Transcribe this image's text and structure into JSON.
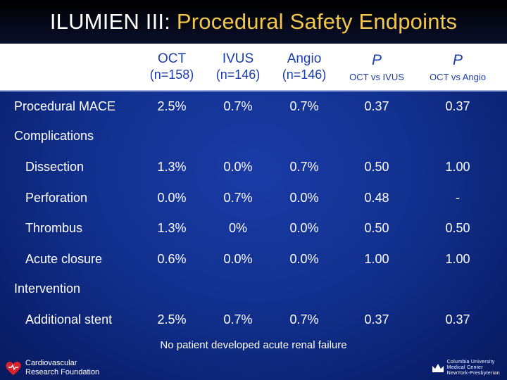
{
  "slide": {
    "title_prefix": "ILUMIEN III: ",
    "title_accent": "Procedural Safety Endpoints",
    "accent_color": "#f2c74a",
    "background_color": "#12318f"
  },
  "table": {
    "headers": [
      {
        "line1": "OCT",
        "line2": "(n=158)"
      },
      {
        "line1": "IVUS",
        "line2": "(n=146)"
      },
      {
        "line1": "Angio",
        "line2": "(n=146)"
      },
      {
        "p": "P",
        "sub": "OCT vs IVUS"
      },
      {
        "p": "P",
        "sub": "OCT vs Angio"
      }
    ],
    "row_mace": {
      "label": "Procedural MACE",
      "values": [
        "2.5%",
        "0.7%",
        "0.7%",
        "0.37",
        "0.37"
      ]
    },
    "section_complications": "Complications",
    "complications": [
      {
        "label": "Dissection",
        "values": [
          "1.3%",
          "0.0%",
          "0.7%",
          "0.50",
          "1.00"
        ]
      },
      {
        "label": "Perforation",
        "values": [
          "0.0%",
          "0.7%",
          "0.0%",
          "0.48",
          "-"
        ]
      },
      {
        "label": "Thrombus",
        "values": [
          "1.3%",
          "0%",
          "0.0%",
          "0.50",
          "0.50"
        ]
      },
      {
        "label": "Acute closure",
        "values": [
          "0.6%",
          "0.0%",
          "0.0%",
          "1.00",
          "1.00"
        ]
      }
    ],
    "section_intervention": "Intervention",
    "intervention": [
      {
        "label": "Additional stent",
        "values": [
          "2.5%",
          "0.7%",
          "0.7%",
          "0.37",
          "0.37"
        ]
      }
    ]
  },
  "footnote": "No patient developed acute renal failure",
  "logos": {
    "left_line1": "Cardiovascular",
    "left_line2": "Research Foundation",
    "right_line1": "Columbia University",
    "right_line2": "Medical Center",
    "right_line3": "NewYork-Presbyterian"
  }
}
